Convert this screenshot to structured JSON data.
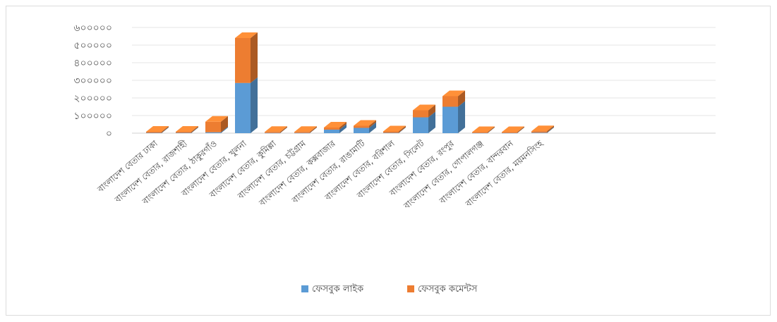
{
  "chart_data": {
    "type": "bar",
    "stacked": true,
    "three_d": true,
    "grid": true,
    "legend_position": "bottom",
    "ylim": [
      0,
      600000
    ],
    "yticks": [
      "৬০০০০০",
      "৫০০০০০",
      "৪০০০০০",
      "৩০০০০০",
      "২০০০০০",
      "১০০০০০",
      "০"
    ],
    "ytick_values": [
      600000,
      500000,
      400000,
      300000,
      200000,
      100000,
      0
    ],
    "categories": [
      "বাংলাদেশ বেতার ঢাকা",
      "বাংলাদেশ বেতার, রাজশাহী",
      "বাংলাদেশ বেতার, ঠাকুরগাঁও",
      "বাংলাদেশ বেতার, খুলনা",
      "বাংলাদেশ বেতার, কুমিল্লা",
      "বাংলাদেশ বেতার, চট্টগ্রাম",
      "বাংলাদেশ বেতার, কক্সবাজার",
      "বাংলাদেশ বেতার, রাঙামাটি",
      "বাংলাদেশ বেতার, বরিশাল",
      "বাংলাদেশ বেতার, সিলেট",
      "বাংলাদেশ বেতার, রংপুর",
      "বাংলাদেশ বেতার, গোপালগঞ্জ",
      "বাংলাদেশ বেতার, বান্দরবান",
      "বাংলাদেশ বেতার, ময়মনসিংহ"
    ],
    "series": [
      {
        "name": "ফেসবুক লাইক",
        "color": "#5b9bd5",
        "values": [
          2000,
          2000,
          5000,
          285000,
          1000,
          1000,
          20000,
          30000,
          2000,
          90000,
          150000,
          1000,
          1000,
          3000
        ]
      },
      {
        "name": "ফেসবুক কমেন্টস",
        "color": "#ed7d31",
        "values": [
          6000,
          6000,
          60000,
          255000,
          6000,
          6000,
          12000,
          12000,
          8000,
          40000,
          60000,
          5000,
          5000,
          8000
        ]
      }
    ]
  }
}
